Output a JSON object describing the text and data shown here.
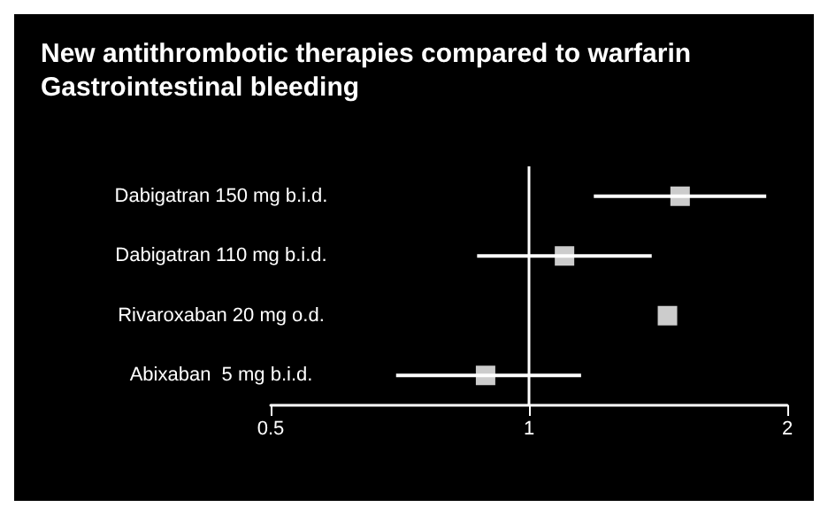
{
  "chart_data": {
    "type": "scatter",
    "title": "New antithrombotic therapies compared to warfarin\nGastrointestinal bleeding",
    "orientation": "horizontal",
    "categories": [
      "Dabigatran 150 mg b.i.d.",
      "Dabigatran 110 mg b.i.d.",
      "Rivaroxaban 20 mg o.d.",
      "Abixaban  5 mg b.i.d."
    ],
    "values": [
      1.5,
      1.1,
      1.45,
      0.89
    ],
    "errors": [
      [
        1.19,
        1.89
      ],
      [
        0.87,
        1.39
      ],
      null,
      [
        0.7,
        1.15
      ]
    ],
    "color": "#ffffff",
    "marker": "square",
    "log": "x",
    "xlim": [
      0.5,
      2
    ],
    "xticks": [
      0.5,
      1,
      2
    ],
    "ref_lines": [
      {
        "axis": "x",
        "value": 1,
        "color": "#ffffff"
      }
    ],
    "grid": false
  }
}
